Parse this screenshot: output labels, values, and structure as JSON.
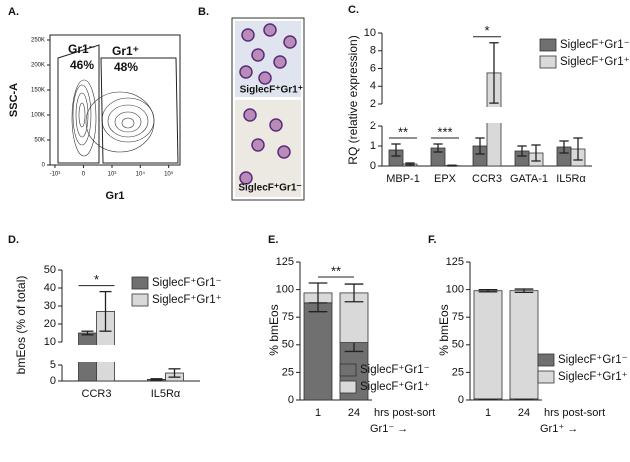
{
  "chart_data": [
    {
      "type": "flow",
      "panel": "A.",
      "ylabel": "SSC-A",
      "xlabel": "Gr1",
      "scale": "biexponential",
      "xlim": [
        -1500,
        250000
      ],
      "ylim": [
        0,
        260000
      ],
      "xticks": [
        {
          "value": -1000,
          "label": "-10³"
        },
        {
          "value": 0,
          "label": "0"
        },
        {
          "value": 1000,
          "label": "10³"
        },
        {
          "value": 10000,
          "label": "10⁴"
        },
        {
          "value": 100000,
          "label": "10⁵"
        }
      ],
      "yticks": [
        {
          "value": 0,
          "label": "0"
        },
        {
          "value": 50000,
          "label": "50K"
        },
        {
          "value": 100000,
          "label": "100K"
        },
        {
          "value": 150000,
          "label": "150K"
        },
        {
          "value": 200000,
          "label": "200K"
        },
        {
          "value": 250000,
          "label": "250K"
        }
      ],
      "gates": [
        {
          "name": "Gr1⁻",
          "value": 46,
          "value_label": "46%"
        },
        {
          "name": "Gr1⁺",
          "value": 48,
          "value_label": "48%"
        }
      ]
    },
    {
      "type": "image",
      "panel": "B.",
      "captions": [
        "SiglecF⁺Gr1⁺",
        "SiglecF⁺Gr1⁻"
      ]
    },
    {
      "type": "bar",
      "panel": "C.",
      "ylabel": "RQ (relative expression)",
      "categories": [
        "MBP-1",
        "EPX",
        "CCR3",
        "GATA-1",
        "IL5Rα"
      ],
      "segments": [
        {
          "ylim": [
            0,
            2
          ],
          "yticks": [
            0,
            1,
            2
          ]
        },
        {
          "ylim": [
            2,
            10
          ],
          "yticks": [
            2,
            4,
            6,
            8,
            10
          ]
        }
      ],
      "series": [
        {
          "name": "SiglecF⁺Gr1⁻",
          "color": "#707070",
          "values": [
            0.8,
            0.9,
            1.0,
            0.75,
            0.95
          ],
          "errors": [
            0.3,
            0.2,
            0.4,
            0.25,
            0.3
          ]
        },
        {
          "name": "SiglecF⁺Gr1⁺",
          "color": "#d9d9d9",
          "values": [
            0.1,
            0.02,
            5.5,
            0.65,
            0.85
          ],
          "errors": [
            0.05,
            0.02,
            3.4,
            0.4,
            0.55
          ]
        }
      ],
      "significance": [
        "**",
        "***",
        "*",
        null,
        null
      ]
    },
    {
      "type": "bar",
      "panel": "D.",
      "ylabel": "bmEos (% of total)",
      "categories": [
        "CCR3",
        "IL5Rα"
      ],
      "segments": [
        {
          "ylim": [
            0,
            5
          ],
          "yticks": [
            0,
            5
          ]
        },
        {
          "ylim": [
            10,
            50
          ],
          "yticks": [
            10,
            20,
            30,
            40,
            50
          ]
        }
      ],
      "series": [
        {
          "name": "SiglecF⁺Gr1⁻",
          "color": "#707070",
          "values": [
            15,
            0.5
          ],
          "errors": [
            1,
            0.2
          ]
        },
        {
          "name": "SiglecF⁺Gr1⁺",
          "color": "#d9d9d9",
          "values": [
            27,
            2.5
          ],
          "errors": [
            11,
            1.3
          ]
        }
      ],
      "significance": [
        "*",
        null
      ]
    },
    {
      "type": "stacked_bar",
      "panel": "E.",
      "ylabel": "% bmEos",
      "xlabel": "hrs post-sort",
      "xnote": "Gr1⁻ →",
      "categories": [
        "1",
        "24"
      ],
      "ylim": [
        0,
        125
      ],
      "yticks": [
        0,
        25,
        50,
        75,
        100,
        125
      ],
      "series": [
        {
          "name": "SiglecF⁺Gr1⁻",
          "color": "#707070",
          "values": [
            88,
            52
          ],
          "errors": [
            8,
            8
          ]
        },
        {
          "name": "SiglecF⁺Gr1⁺",
          "color": "#d9d9d9",
          "values": [
            9,
            45
          ],
          "errors": [
            9,
            8
          ]
        }
      ],
      "significance": "**"
    },
    {
      "type": "stacked_bar",
      "panel": "F.",
      "ylabel": "% bmEos",
      "xlabel": "hrs post-sort",
      "xnote": "Gr1⁺ →",
      "categories": [
        "1",
        "24"
      ],
      "ylim": [
        0,
        125
      ],
      "yticks": [
        0,
        25,
        50,
        75,
        100,
        125
      ],
      "series": [
        {
          "name": "SiglecF⁺Gr1⁻",
          "color": "#707070",
          "values": [
            1,
            1
          ],
          "errors": [
            0.5,
            0.5
          ]
        },
        {
          "name": "SiglecF⁺Gr1⁺",
          "color": "#d9d9d9",
          "values": [
            98,
            98
          ],
          "errors": [
            1,
            1.5
          ]
        }
      ]
    }
  ]
}
